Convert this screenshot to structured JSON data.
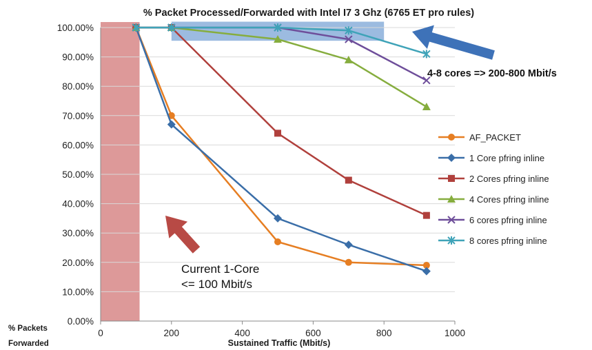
{
  "chart_data": {
    "type": "line",
    "title": "% Packet Processed/Forwarded with Intel I7 3 Ghz (6765 ET pro rules)",
    "xlabel": "Sustained Traffic (Mbit/s)",
    "ylabel_line1": "% Packets",
    "ylabel_line2": "Forwarded",
    "xlim": [
      0,
      1000
    ],
    "ylim": [
      0,
      100
    ],
    "xticks": [
      0,
      200,
      400,
      600,
      800,
      1000
    ],
    "yticks": [
      0,
      10,
      20,
      30,
      40,
      50,
      60,
      70,
      80,
      90,
      100
    ],
    "ytick_labels": [
      "0.00%",
      "10.00%",
      "20.00%",
      "30.00%",
      "40.00%",
      "50.00%",
      "60.00%",
      "70.00%",
      "80.00%",
      "90.00%",
      "100.00%"
    ],
    "xtick_labels": [
      "0",
      "200",
      "400",
      "600",
      "800",
      "1000"
    ],
    "grid": "horizontal",
    "legend_position": "right",
    "series": [
      {
        "name": "AF_PACKET",
        "color": "#E67E22",
        "marker": "circle",
        "x": [
          100,
          200,
          500,
          700,
          920
        ],
        "y": [
          100,
          70,
          27,
          20,
          19
        ]
      },
      {
        "name": "1 Core pfring inline",
        "color": "#3A6EA8",
        "marker": "diamond",
        "x": [
          100,
          200,
          500,
          700,
          920
        ],
        "y": [
          100,
          67,
          35,
          26,
          17
        ]
      },
      {
        "name": "2 Cores pfring inline",
        "color": "#B0403C",
        "marker": "square",
        "x": [
          100,
          200,
          500,
          700,
          920
        ],
        "y": [
          100,
          100,
          64,
          48,
          36
        ]
      },
      {
        "name": "4 Cores pfring inline",
        "color": "#86AD3E",
        "marker": "triangle",
        "x": [
          100,
          200,
          500,
          700,
          920
        ],
        "y": [
          100,
          100,
          96,
          89,
          73
        ]
      },
      {
        "name": "6 cores pfring inline",
        "color": "#6E4E9A",
        "marker": "x",
        "x": [
          100,
          200,
          500,
          700,
          920
        ],
        "y": [
          100,
          100,
          100,
          96,
          82
        ]
      },
      {
        "name": "8 cores pfring inline",
        "color": "#3FA3B8",
        "marker": "star",
        "x": [
          100,
          200,
          500,
          700,
          920
        ],
        "y": [
          100,
          100,
          100,
          99,
          91
        ]
      }
    ],
    "annotations": {
      "current_line1": "Current 1-Core",
      "current_line2": "<= 100 Mbit/s",
      "multicore": "4-8 cores => 200-800 Mbit/s",
      "red_region_x": [
        0,
        110
      ],
      "blue_region_x": [
        200,
        800
      ],
      "blue_region_y": [
        95.5,
        102
      ]
    },
    "colors": {
      "red_region": "#D98E8E",
      "blue_region": "#7BA4D6",
      "red_arrow": "#B84A45",
      "blue_arrow": "#3E72B8"
    }
  }
}
